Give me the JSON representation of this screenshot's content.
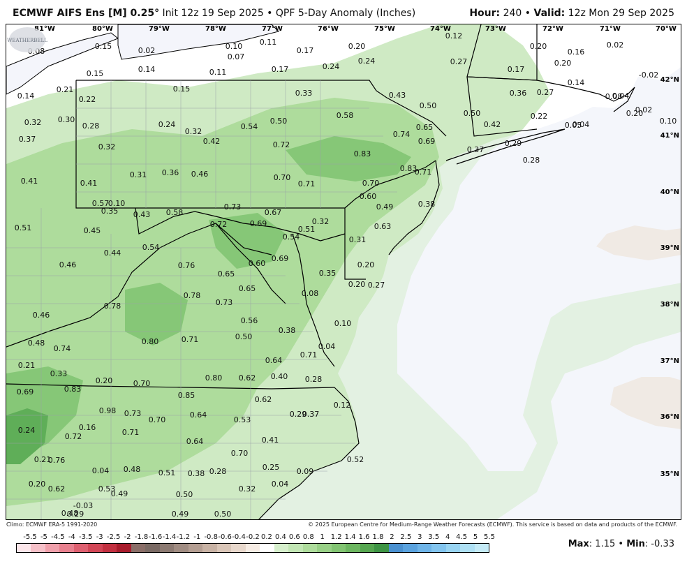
{
  "header": {
    "model": "ECMWF AIFS Ens [M] 0.25",
    "degree": "°",
    "init": " Init 12z 19 Sep 2025 • QPF 5-Day Anomaly (Inches)",
    "hour_label": "Hour:",
    "hour_value": " 240 • ",
    "valid_label": "Valid:",
    "valid_value": " 12z Mon 29 Sep 2025"
  },
  "footer": {
    "climo": "Climo: ECMWF ERA-5 1991-2020",
    "copyright": "© 2025 European Centre for Medium-Range Weather Forecasts (ECMWF). This service is based on data and products of the ECMWF."
  },
  "legend": {
    "labels": [
      "-5.5",
      "-5",
      "-4.5",
      "-4",
      "-3.5",
      "-3",
      "-2.5",
      "-2",
      "-1.8",
      "-1.6",
      "-1.4",
      "-1.2",
      "-1",
      "-0.8",
      "-0.6",
      "-0.4",
      "-0.2",
      "0.2",
      "0.4",
      "0.6",
      "0.8",
      "1",
      "1.2",
      "1.4",
      "1.6",
      "1.8",
      "2",
      "2.5",
      "3",
      "3.5",
      "4",
      "4.5",
      "5",
      "5.5"
    ],
    "colors": [
      "#fce6ea",
      "#f6c0c8",
      "#f0a0ab",
      "#e8808e",
      "#de6070",
      "#d24656",
      "#c23040",
      "#a81c2c",
      "#8a6e68",
      "#7a6a64",
      "#8c7a72",
      "#a08c82",
      "#b49e92",
      "#c8b2a4",
      "#dac6b8",
      "#e8d8cc",
      "#f6ece4",
      "#ffffff",
      "#d6efcc",
      "#c2e6b4",
      "#aedc9c",
      "#98d086",
      "#82c472",
      "#6cb660",
      "#56a650",
      "#3e9444",
      "#4a90d0",
      "#5aa2de",
      "#6eb4e8",
      "#82c4ee",
      "#98d4f2",
      "#aee0f4",
      "#c4eaf6"
    ],
    "max_label": "Max",
    "max_value": ": 1.15 • ",
    "min_label": "Min",
    "min_value": ": -0.33"
  },
  "logo_text": "WEATHERBELL",
  "map": {
    "lon_labels": [
      "81°W",
      "80°W",
      "79°W",
      "78°W",
      "77°W",
      "76°W",
      "75°W",
      "74°W",
      "73°W",
      "72°W",
      "71°W",
      "70°W"
    ],
    "lat_labels": [
      "42°N",
      "41°N",
      "40°N",
      "39°N",
      "38°N",
      "37°N",
      "36°N",
      "35°N"
    ],
    "colors": {
      "ocean": "#f4f5fb",
      "land": "#ffffff",
      "light_green": "#cfeac4",
      "mid_green": "#aedc9c",
      "dark_green": "#86c777",
      "darkest_green": "#5fae58",
      "tan": "#ecdcc8"
    },
    "values": [
      "0.08",
      "0.15",
      "0.02",
      "0.10",
      "0.11",
      "0.07",
      "0.17",
      "0.20",
      "0.12",
      "0.20",
      "0.16",
      "0.02",
      "0.14",
      "0.11",
      "0.17",
      "0.24",
      "0.24",
      "0.27",
      "0.17",
      "0.20",
      "-0.02",
      "0.15",
      "0.15",
      "0.21",
      "0.14",
      "0.33",
      "0.43",
      "0.36",
      "0.27",
      "0.14",
      "0.32",
      "0.30",
      "0.22",
      "0.28",
      "0.24",
      "0.32",
      "0.54",
      "0.50",
      "0.58",
      "0.50",
      "0.50",
      "0.65",
      "0.42",
      "0.22",
      "0.05",
      "0.37",
      "0.32",
      "0.42",
      "0.72",
      "0.74",
      "0.69",
      "0.37",
      "0.29",
      "0.28",
      "0.83",
      "0.83",
      "0.71",
      "0.41",
      "0.41",
      "0.31",
      "0.36",
      "0.46",
      "0.70",
      "0.71",
      "0.70",
      "0.60",
      "0.35",
      "0.43",
      "0.58",
      "0.73",
      "0.67",
      "0.49",
      "0.38",
      "0.51",
      "0.45",
      "0.72",
      "0.69",
      "0.51",
      "0.54",
      "0.32",
      "0.54",
      "0.63",
      "0.31",
      "0.44",
      "0.46",
      "0.76",
      "0.69",
      "0.60",
      "0.20",
      "0.65",
      "0.35",
      "0.65",
      "0.20",
      "0.27",
      "0.78",
      "0.78",
      "0.73",
      "0.46",
      "0.56",
      "0.10",
      "0.38",
      "0.48",
      "0.80",
      "0.71",
      "0.50",
      "0.74",
      "0.71",
      "0.21",
      "0.64",
      "0.33",
      "0.80",
      "0.62",
      "0.40",
      "0.28",
      "0.20",
      "0.70",
      "0.69",
      "0.83",
      "0.85",
      "0.62",
      "0.24",
      "0.98",
      "0.73",
      "0.70",
      "0.64",
      "0.53",
      "0.29",
      "0.16",
      "0.72",
      "0.71",
      "0.64",
      "0.41",
      "0.21",
      "0.76",
      "0.70",
      "0.25",
      "0.09",
      "0.04",
      "0.48",
      "0.51",
      "0.38",
      "0.28",
      "0.20",
      "0.62",
      "0.53",
      "0.49",
      "0.50",
      "0.32",
      "0.04",
      "-0.03",
      "0.49",
      "0.29",
      "0.48",
      "0.50",
      "0.08",
      "0.04",
      "0.02",
      "0.20",
      "0.04",
      "0.10",
      "0.04",
      "0.12",
      "0.08",
      "0.37",
      "0.52",
      "0.57",
      "0.10"
    ]
  }
}
